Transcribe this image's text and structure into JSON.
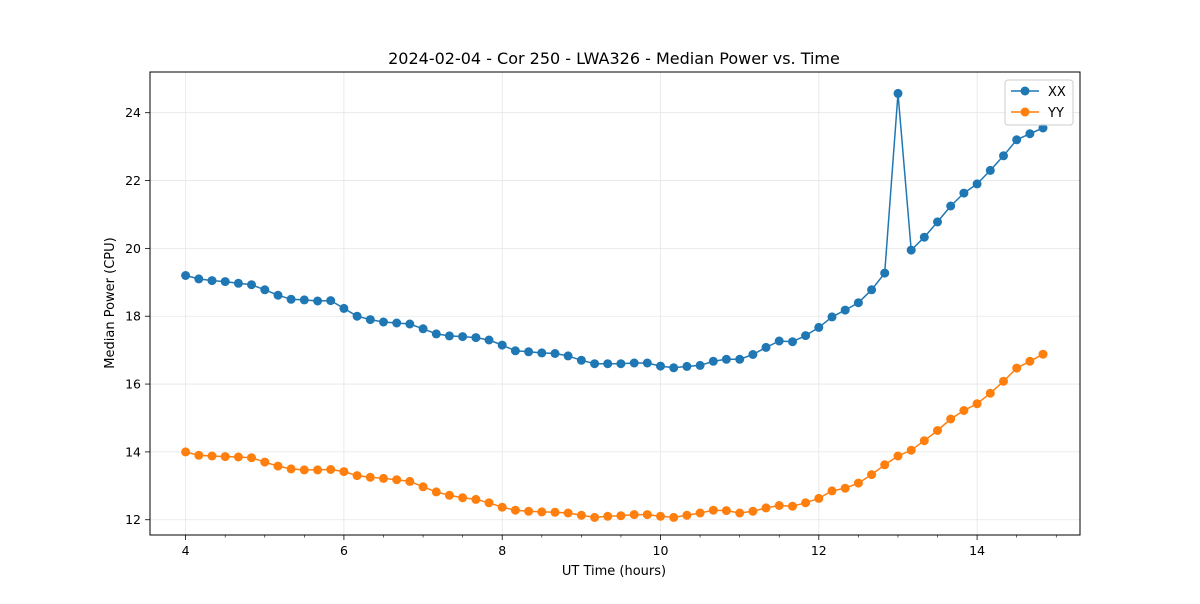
{
  "chart_data": {
    "type": "line",
    "title": "2024-02-04 - Cor 250 - LWA326 - Median Power vs. Time",
    "xlabel": "UT Time (hours)",
    "ylabel": "Median Power (CPU)",
    "xlim": [
      3.55,
      15.3
    ],
    "ylim": [
      11.55,
      25.2
    ],
    "xticks": [
      4,
      6,
      8,
      10,
      12,
      14
    ],
    "xtick_labels": [
      "4",
      "6",
      "8",
      "10",
      "12",
      "14"
    ],
    "yticks": [
      12,
      14,
      16,
      18,
      20,
      22,
      24
    ],
    "ytick_labels": [
      "12",
      "14",
      "16",
      "18",
      "20",
      "22",
      "24"
    ],
    "grid": true,
    "legend_position": "top-right",
    "x": [
      4.0,
      4.167,
      4.333,
      4.5,
      4.667,
      4.833,
      5.0,
      5.167,
      5.333,
      5.5,
      5.667,
      5.833,
      6.0,
      6.167,
      6.333,
      6.5,
      6.667,
      6.833,
      7.0,
      7.167,
      7.333,
      7.5,
      7.667,
      7.833,
      8.0,
      8.167,
      8.333,
      8.5,
      8.667,
      8.833,
      9.0,
      9.167,
      9.333,
      9.5,
      9.667,
      9.833,
      10.0,
      10.167,
      10.333,
      10.5,
      10.667,
      10.833,
      11.0,
      11.167,
      11.333,
      11.5,
      11.667,
      11.833,
      12.0,
      12.167,
      12.333,
      12.5,
      12.667,
      12.833,
      13.0,
      13.167,
      13.333,
      13.5,
      13.667,
      13.833,
      14.0,
      14.167,
      14.333,
      14.5,
      14.667,
      14.833
    ],
    "series": [
      {
        "name": "XX",
        "color": "#1f77b4",
        "values": [
          19.2,
          19.1,
          19.05,
          19.02,
          18.97,
          18.93,
          18.78,
          18.62,
          18.5,
          18.48,
          18.45,
          18.46,
          18.23,
          18.0,
          17.9,
          17.83,
          17.8,
          17.77,
          17.63,
          17.48,
          17.42,
          17.4,
          17.37,
          17.3,
          17.15,
          16.98,
          16.95,
          16.92,
          16.9,
          16.83,
          16.7,
          16.6,
          16.6,
          16.6,
          16.62,
          16.62,
          16.53,
          16.48,
          16.52,
          16.55,
          16.67,
          16.73,
          16.73,
          16.87,
          17.08,
          17.27,
          17.25,
          17.43,
          17.67,
          17.98,
          18.18,
          18.4,
          18.78,
          19.27,
          24.57,
          19.95,
          20.33,
          20.78,
          21.25,
          21.63,
          21.9,
          22.3,
          22.73,
          23.2,
          23.38,
          23.55
        ]
      },
      {
        "name": "YY",
        "color": "#ff7f0e",
        "values": [
          14.0,
          13.9,
          13.88,
          13.86,
          13.85,
          13.83,
          13.7,
          13.58,
          13.5,
          13.47,
          13.47,
          13.48,
          13.42,
          13.3,
          13.25,
          13.22,
          13.18,
          13.13,
          12.97,
          12.82,
          12.72,
          12.65,
          12.6,
          12.5,
          12.37,
          12.28,
          12.25,
          12.23,
          12.22,
          12.2,
          12.13,
          12.07,
          12.1,
          12.12,
          12.15,
          12.15,
          12.1,
          12.07,
          12.13,
          12.2,
          12.28,
          12.27,
          12.2,
          12.25,
          12.35,
          12.42,
          12.4,
          12.5,
          12.63,
          12.85,
          12.93,
          13.08,
          13.33,
          13.62,
          13.88,
          14.05,
          14.33,
          14.63,
          14.97,
          15.22,
          15.42,
          15.73,
          16.08,
          16.47,
          16.67,
          16.88
        ]
      }
    ]
  }
}
